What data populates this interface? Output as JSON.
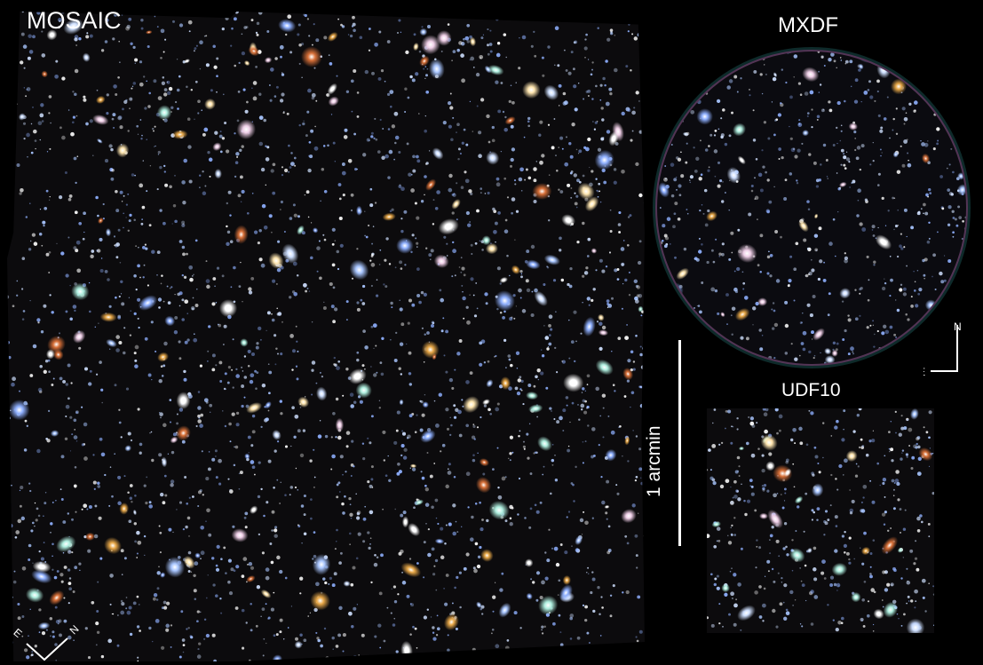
{
  "panels": {
    "mosaic": {
      "title": "MOSAIC",
      "compass": {
        "east": "E",
        "north": "N"
      }
    },
    "mxdf": {
      "title": "MXDF",
      "compass": {
        "east": "E",
        "north": "N"
      }
    },
    "udf10": {
      "title": "UDF10"
    }
  },
  "scale_bar": {
    "label": "1 arcmin"
  },
  "colors": {
    "background": "#000000",
    "field": "#0c0b0d",
    "text": "#ffffff",
    "galaxy_blue": "#b8d4ff",
    "galaxy_orange": "#e0a040",
    "galaxy_red": "#d85030"
  }
}
